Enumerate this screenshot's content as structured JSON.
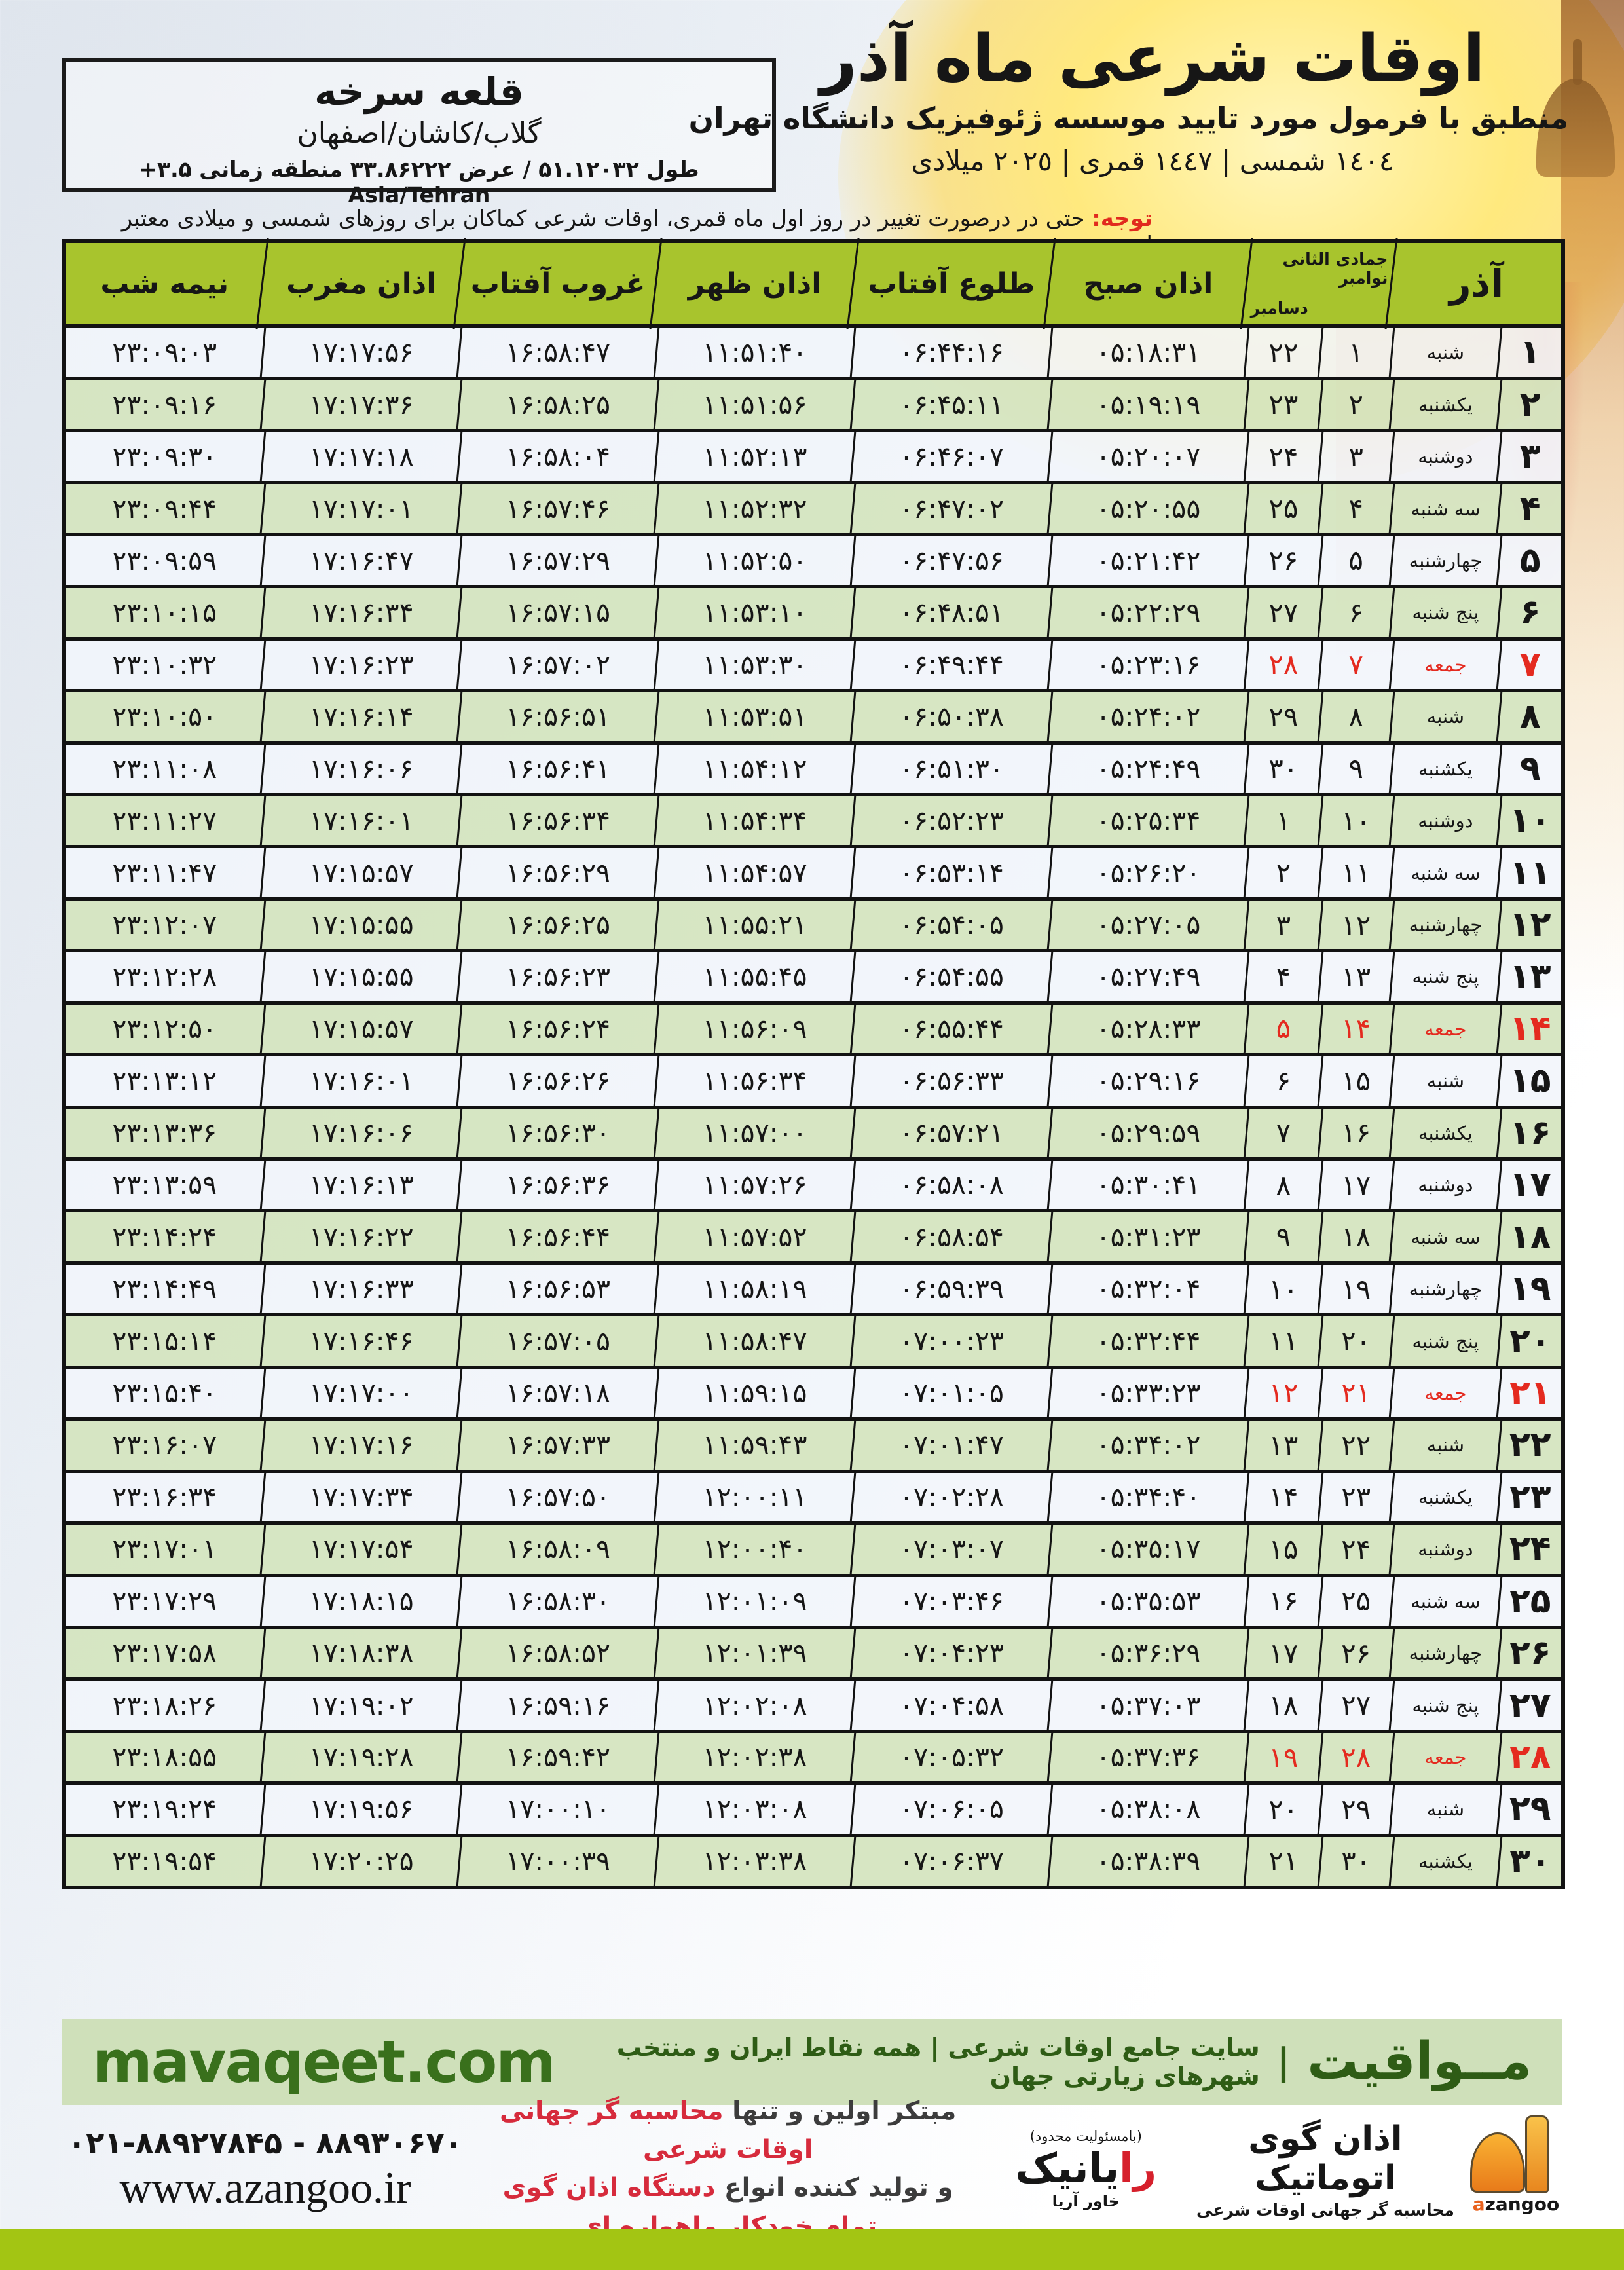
{
  "location_box": {
    "city": "قلعه سرخه",
    "region": "گلاب/کاشان/اصفهان",
    "coords": "طول ۵۱.۱۲۰۳۲ / عرض ۳۳.۸۶۲۲۲ منطقه زمانی ۳.۵+ Asia/Tehran"
  },
  "header": {
    "title": "اوقات شرعی ماه آذر",
    "subtitle": "منطبق با فرمول مورد تایید موسسه ژئوفیزیک دانشگاه تهران",
    "years": "١٤٠٤ شمسی | ١٤٤٧ قمری | ٢٠٢٥ میلادی"
  },
  "note": {
    "label": "توجه:",
    "text": "حتی در درصورت تغییر در روز اول ماه قمری، اوقات شرعی کماکان برای روزهای شمسی و میلادی معتبر است."
  },
  "table": {
    "headers": {
      "month": "آذر",
      "lunar_month": "جمادی الثانی",
      "greg_top": "نوامبر",
      "greg_bottom": "دسامبر",
      "fajr": "اذان صبح",
      "sunrise": "طلوع آفتاب",
      "dhuhr": "اذان ظهر",
      "sunset": "غروب آفتاب",
      "maghrib": "اذان مغرب",
      "midnight": "نیمه شب"
    },
    "rows": [
      {
        "day": 1,
        "weekday": "شنبه",
        "lunar": 1,
        "greg": 22,
        "fajr": "05:18:31",
        "sunrise": "06:44:16",
        "dhuhr": "11:51:40",
        "sunset": "16:58:47",
        "maghrib": "17:17:56",
        "midnight": "23:09:03"
      },
      {
        "day": 2,
        "weekday": "یکشنبه",
        "lunar": 2,
        "greg": 23,
        "fajr": "05:19:19",
        "sunrise": "06:45:11",
        "dhuhr": "11:51:56",
        "sunset": "16:58:25",
        "maghrib": "17:17:36",
        "midnight": "23:09:16"
      },
      {
        "day": 3,
        "weekday": "دوشنبه",
        "lunar": 3,
        "greg": 24,
        "fajr": "05:20:07",
        "sunrise": "06:46:07",
        "dhuhr": "11:52:13",
        "sunset": "16:58:04",
        "maghrib": "17:17:18",
        "midnight": "23:09:30"
      },
      {
        "day": 4,
        "weekday": "سه شنبه",
        "lunar": 4,
        "greg": 25,
        "fajr": "05:20:55",
        "sunrise": "06:47:02",
        "dhuhr": "11:52:32",
        "sunset": "16:57:46",
        "maghrib": "17:17:01",
        "midnight": "23:09:44"
      },
      {
        "day": 5,
        "weekday": "چهارشنبه",
        "lunar": 5,
        "greg": 26,
        "fajr": "05:21:42",
        "sunrise": "06:47:56",
        "dhuhr": "11:52:50",
        "sunset": "16:57:29",
        "maghrib": "17:16:47",
        "midnight": "23:09:59"
      },
      {
        "day": 6,
        "weekday": "پنج شنبه",
        "lunar": 6,
        "greg": 27,
        "fajr": "05:22:29",
        "sunrise": "06:48:51",
        "dhuhr": "11:53:10",
        "sunset": "16:57:15",
        "maghrib": "17:16:34",
        "midnight": "23:10:15"
      },
      {
        "day": 7,
        "weekday": "جمعه",
        "lunar": 7,
        "greg": 28,
        "fajr": "05:23:16",
        "sunrise": "06:49:44",
        "dhuhr": "11:53:30",
        "sunset": "16:57:02",
        "maghrib": "17:16:23",
        "midnight": "23:10:32"
      },
      {
        "day": 8,
        "weekday": "شنبه",
        "lunar": 8,
        "greg": 29,
        "fajr": "05:24:02",
        "sunrise": "06:50:38",
        "dhuhr": "11:53:51",
        "sunset": "16:56:51",
        "maghrib": "17:16:14",
        "midnight": "23:10:50"
      },
      {
        "day": 9,
        "weekday": "یکشنبه",
        "lunar": 9,
        "greg": 30,
        "fajr": "05:24:49",
        "sunrise": "06:51:30",
        "dhuhr": "11:54:12",
        "sunset": "16:56:41",
        "maghrib": "17:16:06",
        "midnight": "23:11:08"
      },
      {
        "day": 10,
        "weekday": "دوشنبه",
        "lunar": 10,
        "greg": 1,
        "fajr": "05:25:34",
        "sunrise": "06:52:23",
        "dhuhr": "11:54:34",
        "sunset": "16:56:34",
        "maghrib": "17:16:01",
        "midnight": "23:11:27"
      },
      {
        "day": 11,
        "weekday": "سه شنبه",
        "lunar": 11,
        "greg": 2,
        "fajr": "05:26:20",
        "sunrise": "06:53:14",
        "dhuhr": "11:54:57",
        "sunset": "16:56:29",
        "maghrib": "17:15:57",
        "midnight": "23:11:47"
      },
      {
        "day": 12,
        "weekday": "چهارشنبه",
        "lunar": 12,
        "greg": 3,
        "fajr": "05:27:05",
        "sunrise": "06:54:05",
        "dhuhr": "11:55:21",
        "sunset": "16:56:25",
        "maghrib": "17:15:55",
        "midnight": "23:12:07"
      },
      {
        "day": 13,
        "weekday": "پنج شنبه",
        "lunar": 13,
        "greg": 4,
        "fajr": "05:27:49",
        "sunrise": "06:54:55",
        "dhuhr": "11:55:45",
        "sunset": "16:56:23",
        "maghrib": "17:15:55",
        "midnight": "23:12:28"
      },
      {
        "day": 14,
        "weekday": "جمعه",
        "lunar": 14,
        "greg": 5,
        "fajr": "05:28:33",
        "sunrise": "06:55:44",
        "dhuhr": "11:56:09",
        "sunset": "16:56:24",
        "maghrib": "17:15:57",
        "midnight": "23:12:50"
      },
      {
        "day": 15,
        "weekday": "شنبه",
        "lunar": 15,
        "greg": 6,
        "fajr": "05:29:16",
        "sunrise": "06:56:33",
        "dhuhr": "11:56:34",
        "sunset": "16:56:26",
        "maghrib": "17:16:01",
        "midnight": "23:13:12"
      },
      {
        "day": 16,
        "weekday": "یکشنبه",
        "lunar": 16,
        "greg": 7,
        "fajr": "05:29:59",
        "sunrise": "06:57:21",
        "dhuhr": "11:57:00",
        "sunset": "16:56:30",
        "maghrib": "17:16:06",
        "midnight": "23:13:36"
      },
      {
        "day": 17,
        "weekday": "دوشنبه",
        "lunar": 17,
        "greg": 8,
        "fajr": "05:30:41",
        "sunrise": "06:58:08",
        "dhuhr": "11:57:26",
        "sunset": "16:56:36",
        "maghrib": "17:16:13",
        "midnight": "23:13:59"
      },
      {
        "day": 18,
        "weekday": "سه شنبه",
        "lunar": 18,
        "greg": 9,
        "fajr": "05:31:23",
        "sunrise": "06:58:54",
        "dhuhr": "11:57:52",
        "sunset": "16:56:44",
        "maghrib": "17:16:22",
        "midnight": "23:14:24"
      },
      {
        "day": 19,
        "weekday": "چهارشنبه",
        "lunar": 19,
        "greg": 10,
        "fajr": "05:32:04",
        "sunrise": "06:59:39",
        "dhuhr": "11:58:19",
        "sunset": "16:56:53",
        "maghrib": "17:16:33",
        "midnight": "23:14:49"
      },
      {
        "day": 20,
        "weekday": "پنج شنبه",
        "lunar": 20,
        "greg": 11,
        "fajr": "05:32:44",
        "sunrise": "07:00:23",
        "dhuhr": "11:58:47",
        "sunset": "16:57:05",
        "maghrib": "17:16:46",
        "midnight": "23:15:14"
      },
      {
        "day": 21,
        "weekday": "جمعه",
        "lunar": 21,
        "greg": 12,
        "fajr": "05:33:23",
        "sunrise": "07:01:05",
        "dhuhr": "11:59:15",
        "sunset": "16:57:18",
        "maghrib": "17:17:00",
        "midnight": "23:15:40"
      },
      {
        "day": 22,
        "weekday": "شنبه",
        "lunar": 22,
        "greg": 13,
        "fajr": "05:34:02",
        "sunrise": "07:01:47",
        "dhuhr": "11:59:43",
        "sunset": "16:57:33",
        "maghrib": "17:17:16",
        "midnight": "23:16:07"
      },
      {
        "day": 23,
        "weekday": "یکشنبه",
        "lunar": 23,
        "greg": 14,
        "fajr": "05:34:40",
        "sunrise": "07:02:28",
        "dhuhr": "12:00:11",
        "sunset": "16:57:50",
        "maghrib": "17:17:34",
        "midnight": "23:16:34"
      },
      {
        "day": 24,
        "weekday": "دوشنبه",
        "lunar": 24,
        "greg": 15,
        "fajr": "05:35:17",
        "sunrise": "07:03:07",
        "dhuhr": "12:00:40",
        "sunset": "16:58:09",
        "maghrib": "17:17:54",
        "midnight": "23:17:01"
      },
      {
        "day": 25,
        "weekday": "سه شنبه",
        "lunar": 25,
        "greg": 16,
        "fajr": "05:35:53",
        "sunrise": "07:03:46",
        "dhuhr": "12:01:09",
        "sunset": "16:58:30",
        "maghrib": "17:18:15",
        "midnight": "23:17:29"
      },
      {
        "day": 26,
        "weekday": "چهارشنبه",
        "lunar": 26,
        "greg": 17,
        "fajr": "05:36:29",
        "sunrise": "07:04:23",
        "dhuhr": "12:01:39",
        "sunset": "16:58:52",
        "maghrib": "17:18:38",
        "midnight": "23:17:58"
      },
      {
        "day": 27,
        "weekday": "پنج شنبه",
        "lunar": 27,
        "greg": 18,
        "fajr": "05:37:03",
        "sunrise": "07:04:58",
        "dhuhr": "12:02:08",
        "sunset": "16:59:16",
        "maghrib": "17:19:02",
        "midnight": "23:18:26"
      },
      {
        "day": 28,
        "weekday": "جمعه",
        "lunar": 28,
        "greg": 19,
        "fajr": "05:37:36",
        "sunrise": "07:05:32",
        "dhuhr": "12:02:38",
        "sunset": "16:59:42",
        "maghrib": "17:19:28",
        "midnight": "23:18:55"
      },
      {
        "day": 29,
        "weekday": "شنبه",
        "lunar": 29,
        "greg": 20,
        "fajr": "05:38:08",
        "sunrise": "07:06:05",
        "dhuhr": "12:03:08",
        "sunset": "17:00:10",
        "maghrib": "17:19:56",
        "midnight": "23:19:24"
      },
      {
        "day": 30,
        "weekday": "یکشنبه",
        "lunar": 30,
        "greg": 21,
        "fajr": "05:38:39",
        "sunrise": "07:06:37",
        "dhuhr": "12:03:38",
        "sunset": "17:00:39",
        "maghrib": "17:20:25",
        "midnight": "23:19:54"
      }
    ]
  },
  "band": {
    "brand": "مــواقیت",
    "separator": "|",
    "tagline": "سایت جامع اوقات شرعی | همه نقاط ایران و منتخب شهرهای زیارتی جهان",
    "site": "mavaqeet.com"
  },
  "footer": {
    "phone": "۰۲۱-۸۸۹۲۷۸۴۵ - ۸۸۹۳۰۶۷۰",
    "url": "www.azangoo.ir",
    "claim_line1_dark": "مبتکر اولین و تنها ",
    "claim_line1_red": "محاسبه گر جهانی اوقات شرعی",
    "claim_line2_dark": "و تولید کننده انواع ",
    "claim_line2_red": "دستگاه اذان گوی تمام خودکار ماهواره ای",
    "rayanik_note": "(بامسئولیت محدود)",
    "rayanik_main_red": "را",
    "rayanik_main_rest": "یانیک",
    "rayanik_sub": "خاور آریا",
    "azangoo_title": "اذان گوی اتوماتیک",
    "azangoo_sub": "محاسبه گر جهانی اوقات شرعی",
    "azangoo_word_first": "a",
    "azangoo_word_rest": "zangoo"
  },
  "colors": {
    "header_green": "#a8c42d",
    "row_green": "#d4e4bf",
    "row_white": "#f1f5fa",
    "friday_red": "#e42a1f",
    "note_red": "#e12a1e",
    "band_green": "#cfe0ba",
    "band_text_green": "#2e5c15",
    "footer_red": "#d62b3c",
    "bottom_bar_green": "#a3c513",
    "border_black": "#121212"
  }
}
